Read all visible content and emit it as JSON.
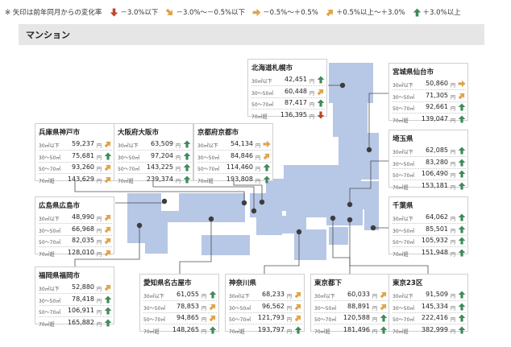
{
  "legend": {
    "note": "※ 矢印は前年同月からの変化率",
    "items": [
      {
        "icon": "arrow-down-red-icon",
        "color": "#c0452a",
        "label": "－3.0%以下"
      },
      {
        "icon": "arrow-down-right-orange-icon",
        "color": "#e0a44a",
        "label": "－3.0%～－0.5%以下"
      },
      {
        "icon": "arrow-right-orange-icon",
        "color": "#e0a44a",
        "label": "－0.5%～＋0.5%"
      },
      {
        "icon": "arrow-up-right-orange-icon",
        "color": "#e0a44a",
        "label": "＋0.5%以上～＋3.0%"
      },
      {
        "icon": "arrow-up-green-icon",
        "color": "#3f8a5a",
        "label": "＋3.0%以上"
      }
    ]
  },
  "section_title": "マンション",
  "row_labels": [
    "30㎡以下",
    "30〜50㎡",
    "50〜70㎡",
    "70㎡超"
  ],
  "unit": "円",
  "colors": {
    "map": "#b7c7e6",
    "line": "#4d4d4d",
    "dot": "#3d3d3d",
    "card_border": "#cfcfcf"
  },
  "cards": [
    {
      "key": "sapporo",
      "name": "北海道札幌市",
      "values": [
        "42,451",
        "60,448",
        "87,417",
        "136,395"
      ],
      "arrows": [
        "up",
        "upright",
        "up",
        "down"
      ]
    },
    {
      "key": "sendai",
      "name": "宮城県仙台市",
      "values": [
        "50,860",
        "71,305",
        "92,661",
        "139,047"
      ],
      "arrows": [
        "right",
        "upright",
        "up",
        "up"
      ]
    },
    {
      "key": "kobe",
      "name": "兵庫県神戸市",
      "values": [
        "59,237",
        "75,681",
        "93,260",
        "143,629"
      ],
      "arrows": [
        "upright",
        "up",
        "upright",
        "upright"
      ]
    },
    {
      "key": "osaka",
      "name": "大阪府大阪市",
      "values": [
        "63,509",
        "97,204",
        "143,225",
        "239,374"
      ],
      "arrows": [
        "up",
        "up",
        "up",
        "up"
      ]
    },
    {
      "key": "kyoto",
      "name": "京都府京都市",
      "values": [
        "54,134",
        "84,846",
        "114,460",
        "193,808"
      ],
      "arrows": [
        "right",
        "upright",
        "up",
        "up"
      ]
    },
    {
      "key": "saitama",
      "name": "埼玉県",
      "values": [
        "62,085",
        "83,280",
        "106,490",
        "153,181"
      ],
      "arrows": [
        "up",
        "up",
        "up",
        "up"
      ]
    },
    {
      "key": "chiba",
      "name": "千葉県",
      "values": [
        "64,062",
        "85,501",
        "105,932",
        "151,948"
      ],
      "arrows": [
        "up",
        "up",
        "up",
        "up"
      ]
    },
    {
      "key": "hiroshima",
      "name": "広島県広島市",
      "values": [
        "48,990",
        "66,968",
        "82,035",
        "128,010"
      ],
      "arrows": [
        "upright",
        "upright",
        "upright",
        "upright"
      ]
    },
    {
      "key": "fukuoka",
      "name": "福岡県福岡市",
      "values": [
        "52,880",
        "78,418",
        "106,911",
        "165,882"
      ],
      "arrows": [
        "upright",
        "up",
        "up",
        "up"
      ]
    },
    {
      "key": "nagoya",
      "name": "愛知県名古屋市",
      "values": [
        "61,055",
        "78,853",
        "94,865",
        "148,265"
      ],
      "arrows": [
        "up",
        "upright",
        "upright",
        "up"
      ]
    },
    {
      "key": "kanagawa",
      "name": "神奈川県",
      "values": [
        "68,233",
        "96,562",
        "121,793",
        "193,797"
      ],
      "arrows": [
        "upright",
        "upright",
        "upright",
        "up"
      ]
    },
    {
      "key": "tokyo",
      "name": "東京都下",
      "values": [
        "60,033",
        "88,891",
        "120,588",
        "181,496"
      ],
      "arrows": [
        "upright",
        "upright",
        "up",
        "up"
      ]
    },
    {
      "key": "tokyo23",
      "name": "東京23区",
      "values": [
        "91,509",
        "145,334",
        "222,416",
        "382,999"
      ],
      "arrows": [
        "up",
        "up",
        "up",
        "up"
      ]
    }
  ]
}
